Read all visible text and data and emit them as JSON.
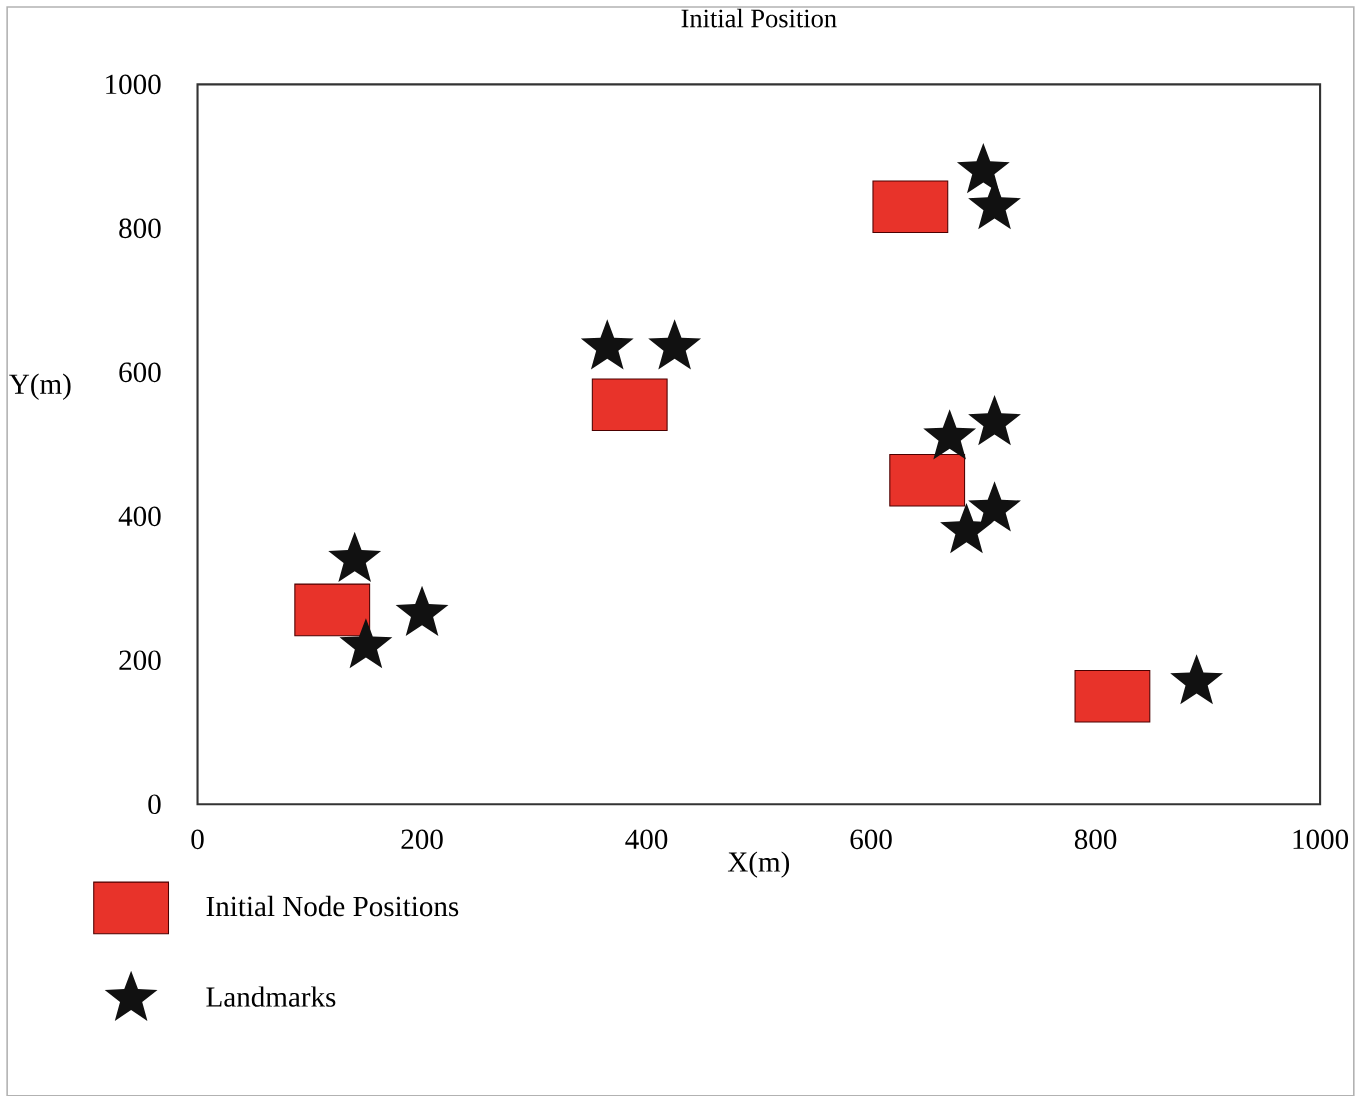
{
  "chart_data": {
    "type": "scatter",
    "title": "Initial Position",
    "xlabel": "X(m)",
    "ylabel": "Y(m)",
    "xlim": [
      0,
      1000
    ],
    "ylim": [
      0,
      1000
    ],
    "xticks": [
      0,
      200,
      400,
      600,
      800,
      1000
    ],
    "yticks": [
      0,
      200,
      400,
      600,
      800,
      1000
    ],
    "grid": false,
    "legend": "bottom left",
    "series": [
      {
        "name": "Initial Node Positions",
        "color": "#e8332a",
        "marker": "square",
        "x": [
          120,
          385,
          635,
          650,
          815
        ],
        "values": [
          270,
          555,
          830,
          450,
          150
        ]
      },
      {
        "name": "Landmarks",
        "color": "#111111",
        "marker": "star",
        "x": [
          140,
          150,
          200,
          365,
          425,
          700,
          710,
          670,
          710,
          710,
          685,
          890
        ],
        "values": [
          340,
          220,
          265,
          635,
          635,
          880,
          830,
          510,
          530,
          410,
          380,
          170
        ]
      }
    ]
  }
}
